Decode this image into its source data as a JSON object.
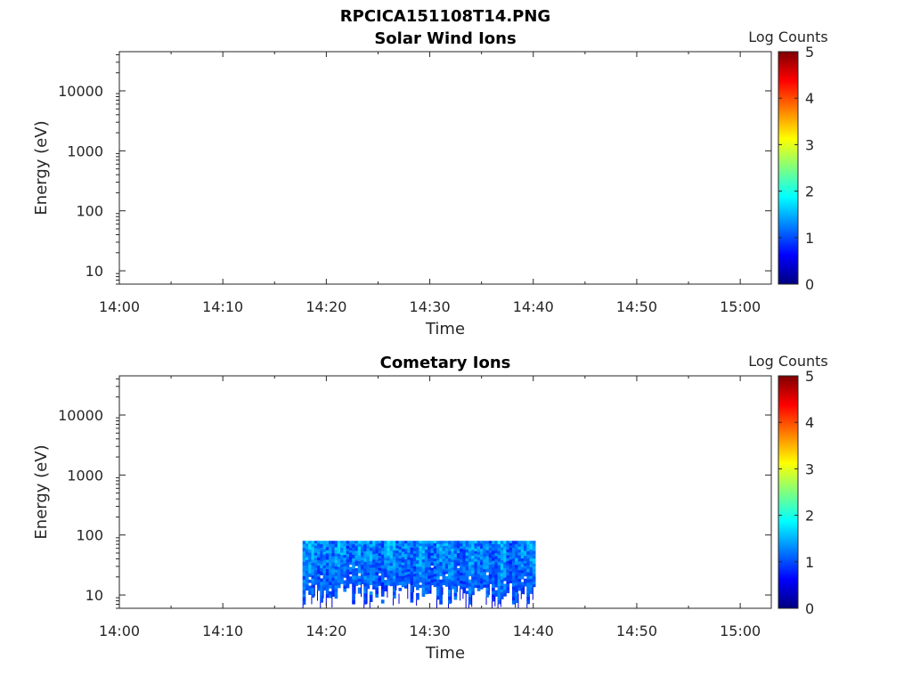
{
  "figure_title": "RPCICA151108T14.PNG",
  "colormap": [
    "#00007f",
    "#0000ff",
    "#007fff",
    "#00ffff",
    "#7fff7f",
    "#ffff00",
    "#ff7f00",
    "#ff0000",
    "#7f0000"
  ],
  "chart_data": [
    {
      "type": "heatmap",
      "title": "Solar Wind Ions",
      "xlabel": "Time",
      "ylabel": "Energy (eV)",
      "x_ticks": [
        "14:00",
        "14:10",
        "14:20",
        "14:30",
        "14:40",
        "14:50",
        "15:00"
      ],
      "y_ticks": [
        "10",
        "100",
        "1000",
        "10000"
      ],
      "y_scale": "log",
      "xlim_minutes": [
        0,
        63
      ],
      "ylim_eV": [
        6,
        45000
      ],
      "colorbar_label": "Log Counts",
      "colorbar_ticks": [
        "0",
        "1",
        "2",
        "3",
        "4",
        "5"
      ],
      "clim": [
        0,
        5
      ],
      "data_present": false
    },
    {
      "type": "heatmap",
      "title": "Cometary Ions",
      "xlabel": "Time",
      "ylabel": "Energy (eV)",
      "x_ticks": [
        "14:00",
        "14:10",
        "14:20",
        "14:30",
        "14:40",
        "14:50",
        "15:00"
      ],
      "y_ticks": [
        "10",
        "100",
        "1000",
        "10000"
      ],
      "y_scale": "log",
      "xlim_minutes": [
        0,
        63
      ],
      "ylim_eV": [
        6,
        45000
      ],
      "colorbar_label": "Log Counts",
      "colorbar_ticks": [
        "0",
        "1",
        "2",
        "3",
        "4",
        "5"
      ],
      "clim": [
        0,
        5
      ],
      "data_present": true,
      "data_time_range_minutes": [
        17.7,
        40.2
      ],
      "data_energy_range_eV": [
        6,
        80
      ],
      "typical_log_counts": [
        0.7,
        1.9
      ]
    }
  ]
}
